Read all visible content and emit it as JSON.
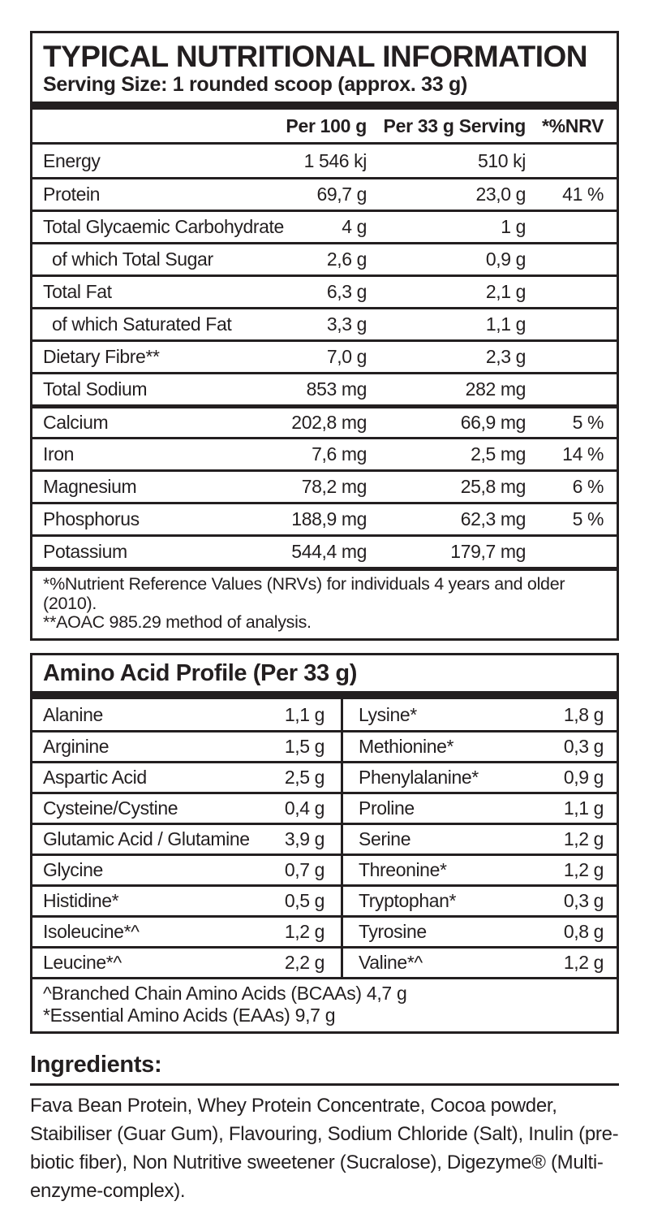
{
  "colors": {
    "ink": "#231f20",
    "background": "#ffffff"
  },
  "header": {
    "title": "TYPICAL NUTRITIONAL INFORMATION",
    "serving_size": "Serving Size: 1 rounded scoop (approx. 33 g)"
  },
  "nutrition_table": {
    "columns": [
      "Per 100 g",
      "Per 33 g Serving",
      "*%NRV"
    ],
    "rows": [
      {
        "label": "Energy",
        "per100": "1 546 kj",
        "per33": "510 kj",
        "nrv": "",
        "indent": false,
        "sep": "none"
      },
      {
        "label": "Protein",
        "per100": "69,7 g",
        "per33": "23,0 g",
        "nrv": "41 %",
        "indent": false,
        "sep": "thin"
      },
      {
        "label": "Total Glycaemic Carbohydrate",
        "per100": "4 g",
        "per33": "1 g",
        "nrv": "",
        "indent": false,
        "sep": "thin"
      },
      {
        "label": "of which Total Sugar",
        "per100": "2,6 g",
        "per33": "0,9 g",
        "nrv": "",
        "indent": true,
        "sep": "thin"
      },
      {
        "label": "Total Fat",
        "per100": "6,3 g",
        "per33": "2,1 g",
        "nrv": "",
        "indent": false,
        "sep": "thin"
      },
      {
        "label": "of which Saturated Fat",
        "per100": "3,3 g",
        "per33": "1,1 g",
        "nrv": "",
        "indent": true,
        "sep": "thin"
      },
      {
        "label": "Dietary Fibre**",
        "per100": "7,0 g",
        "per33": "2,3 g",
        "nrv": "",
        "indent": false,
        "sep": "thin"
      },
      {
        "label": "Total Sodium",
        "per100": "853 mg",
        "per33": "282 mg",
        "nrv": "",
        "indent": false,
        "sep": "thin"
      },
      {
        "label": "Calcium",
        "per100": "202,8 mg",
        "per33": "66,9 mg",
        "nrv": "5 %",
        "indent": false,
        "sep": "thick"
      },
      {
        "label": "Iron",
        "per100": "7,6 mg",
        "per33": "2,5 mg",
        "nrv": "14 %",
        "indent": false,
        "sep": "thin"
      },
      {
        "label": "Magnesium",
        "per100": "78,2 mg",
        "per33": "25,8 mg",
        "nrv": "6 %",
        "indent": false,
        "sep": "thin"
      },
      {
        "label": "Phosphorus",
        "per100": "188,9 mg",
        "per33": "62,3 mg",
        "nrv": "5 %",
        "indent": false,
        "sep": "thin"
      },
      {
        "label": "Potassium",
        "per100": "544,4 mg",
        "per33": "179,7 mg",
        "nrv": "",
        "indent": false,
        "sep": "thin"
      }
    ],
    "footnotes": [
      "*%Nutrient Reference Values (NRVs) for individuals 4 years and older (2010).",
      "**AOAC 985.29 method of analysis."
    ]
  },
  "amino_acids": {
    "title": "Amino Acid Profile (Per 33 g)",
    "left": [
      {
        "label": "Alanine",
        "value": "1,1 g"
      },
      {
        "label": "Arginine",
        "value": "1,5 g"
      },
      {
        "label": "Aspartic Acid",
        "value": "2,5 g"
      },
      {
        "label": "Cysteine/Cystine",
        "value": "0,4 g"
      },
      {
        "label": "Glutamic Acid / Glutamine",
        "value": "3,9 g"
      },
      {
        "label": "Glycine",
        "value": "0,7 g"
      },
      {
        "label": "Histidine*",
        "value": "0,5 g"
      },
      {
        "label": "Isoleucine*^",
        "value": "1,2 g"
      },
      {
        "label": "Leucine*^",
        "value": "2,2 g"
      }
    ],
    "right": [
      {
        "label": "Lysine*",
        "value": "1,8 g"
      },
      {
        "label": "Methionine*",
        "value": "0,3 g"
      },
      {
        "label": "Phenylalanine*",
        "value": "0,9 g"
      },
      {
        "label": "Proline",
        "value": "1,1 g"
      },
      {
        "label": "Serine",
        "value": "1,2 g"
      },
      {
        "label": "Threonine*",
        "value": "1,2 g"
      },
      {
        "label": "Tryptophan*",
        "value": "0,3 g"
      },
      {
        "label": "Tyrosine",
        "value": "0,8 g"
      },
      {
        "label": "Valine*^",
        "value": "1,2 g"
      }
    ],
    "footnotes": [
      "^Branched Chain Amino Acids (BCAAs) 4,7 g",
      "*Essential Amino Acids (EAAs) 9,7 g"
    ]
  },
  "ingredients": {
    "title": "Ingredients:",
    "text": "Fava Bean Protein, Whey Protein Concentrate, Cocoa powder, Staibiliser (Guar Gum), Flavouring, Sodium Chloride (Salt),  Inulin (pre-biotic fiber), Non Nutritive sweetener (Sucralose), Digezyme® (Multi-enzyme-complex)."
  }
}
